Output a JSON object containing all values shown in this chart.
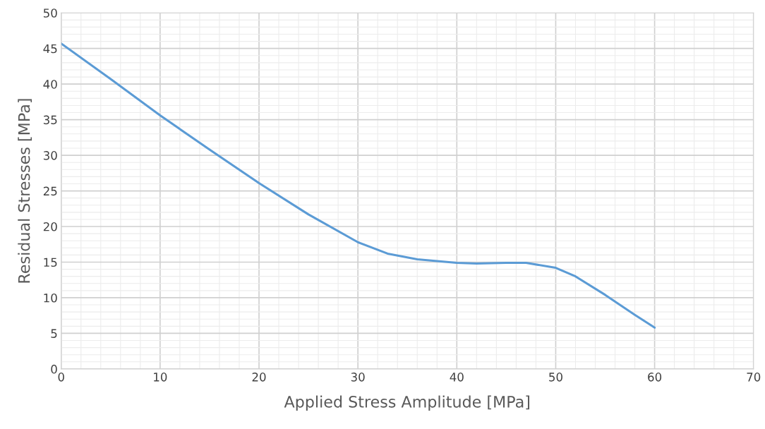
{
  "chart_data": {
    "type": "line",
    "xlabel": "Applied Stress Amplitude [MPa]",
    "ylabel": "Residual Stresses [MPa]",
    "series": [
      {
        "color": "#5b9bd5",
        "x": [
          0,
          5,
          10,
          15,
          20,
          25,
          30,
          33,
          36,
          40,
          42,
          45,
          47,
          50,
          52,
          55,
          58,
          60
        ],
        "values": [
          45.7,
          40.7,
          35.6,
          30.8,
          26.1,
          21.7,
          17.8,
          16.2,
          15.4,
          14.9,
          14.8,
          14.9,
          14.9,
          14.2,
          13.0,
          10.4,
          7.6,
          5.8
        ]
      }
    ],
    "xlim": [
      0,
      70
    ],
    "xticks": [
      0,
      10,
      20,
      30,
      40,
      50,
      60,
      70
    ],
    "ylim": [
      0,
      50
    ],
    "yticks": [
      0,
      5,
      10,
      15,
      20,
      25,
      30,
      35,
      40,
      45,
      50
    ],
    "grid": true,
    "marker": "none",
    "line_style": "solid"
  }
}
